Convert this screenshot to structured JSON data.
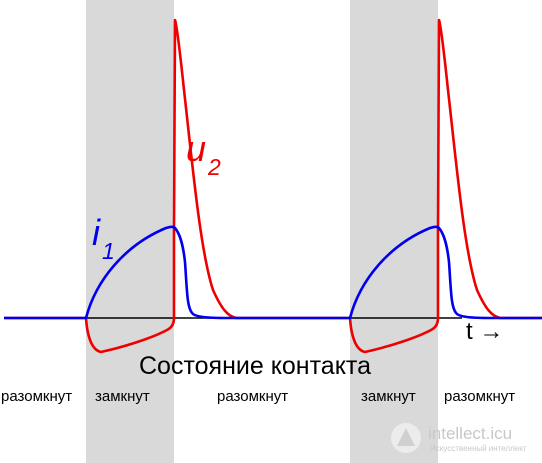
{
  "title": "Состояние контакта",
  "axis_label": "t →",
  "labels": {
    "current": {
      "letter": "i",
      "sub": "1"
    },
    "voltage": {
      "letter": "u",
      "sub": "2"
    }
  },
  "states": [
    "разомкнут",
    "замкнут",
    "разомкнут",
    "замкнут",
    "разомкнут"
  ],
  "colors": {
    "current": "#0000ee",
    "voltage": "#ee0000",
    "closed_band": "#d9d9d9",
    "axis": "#000000"
  },
  "watermark": {
    "name": "intellect.icu",
    "tagline": "Искусственный интеллект"
  }
}
